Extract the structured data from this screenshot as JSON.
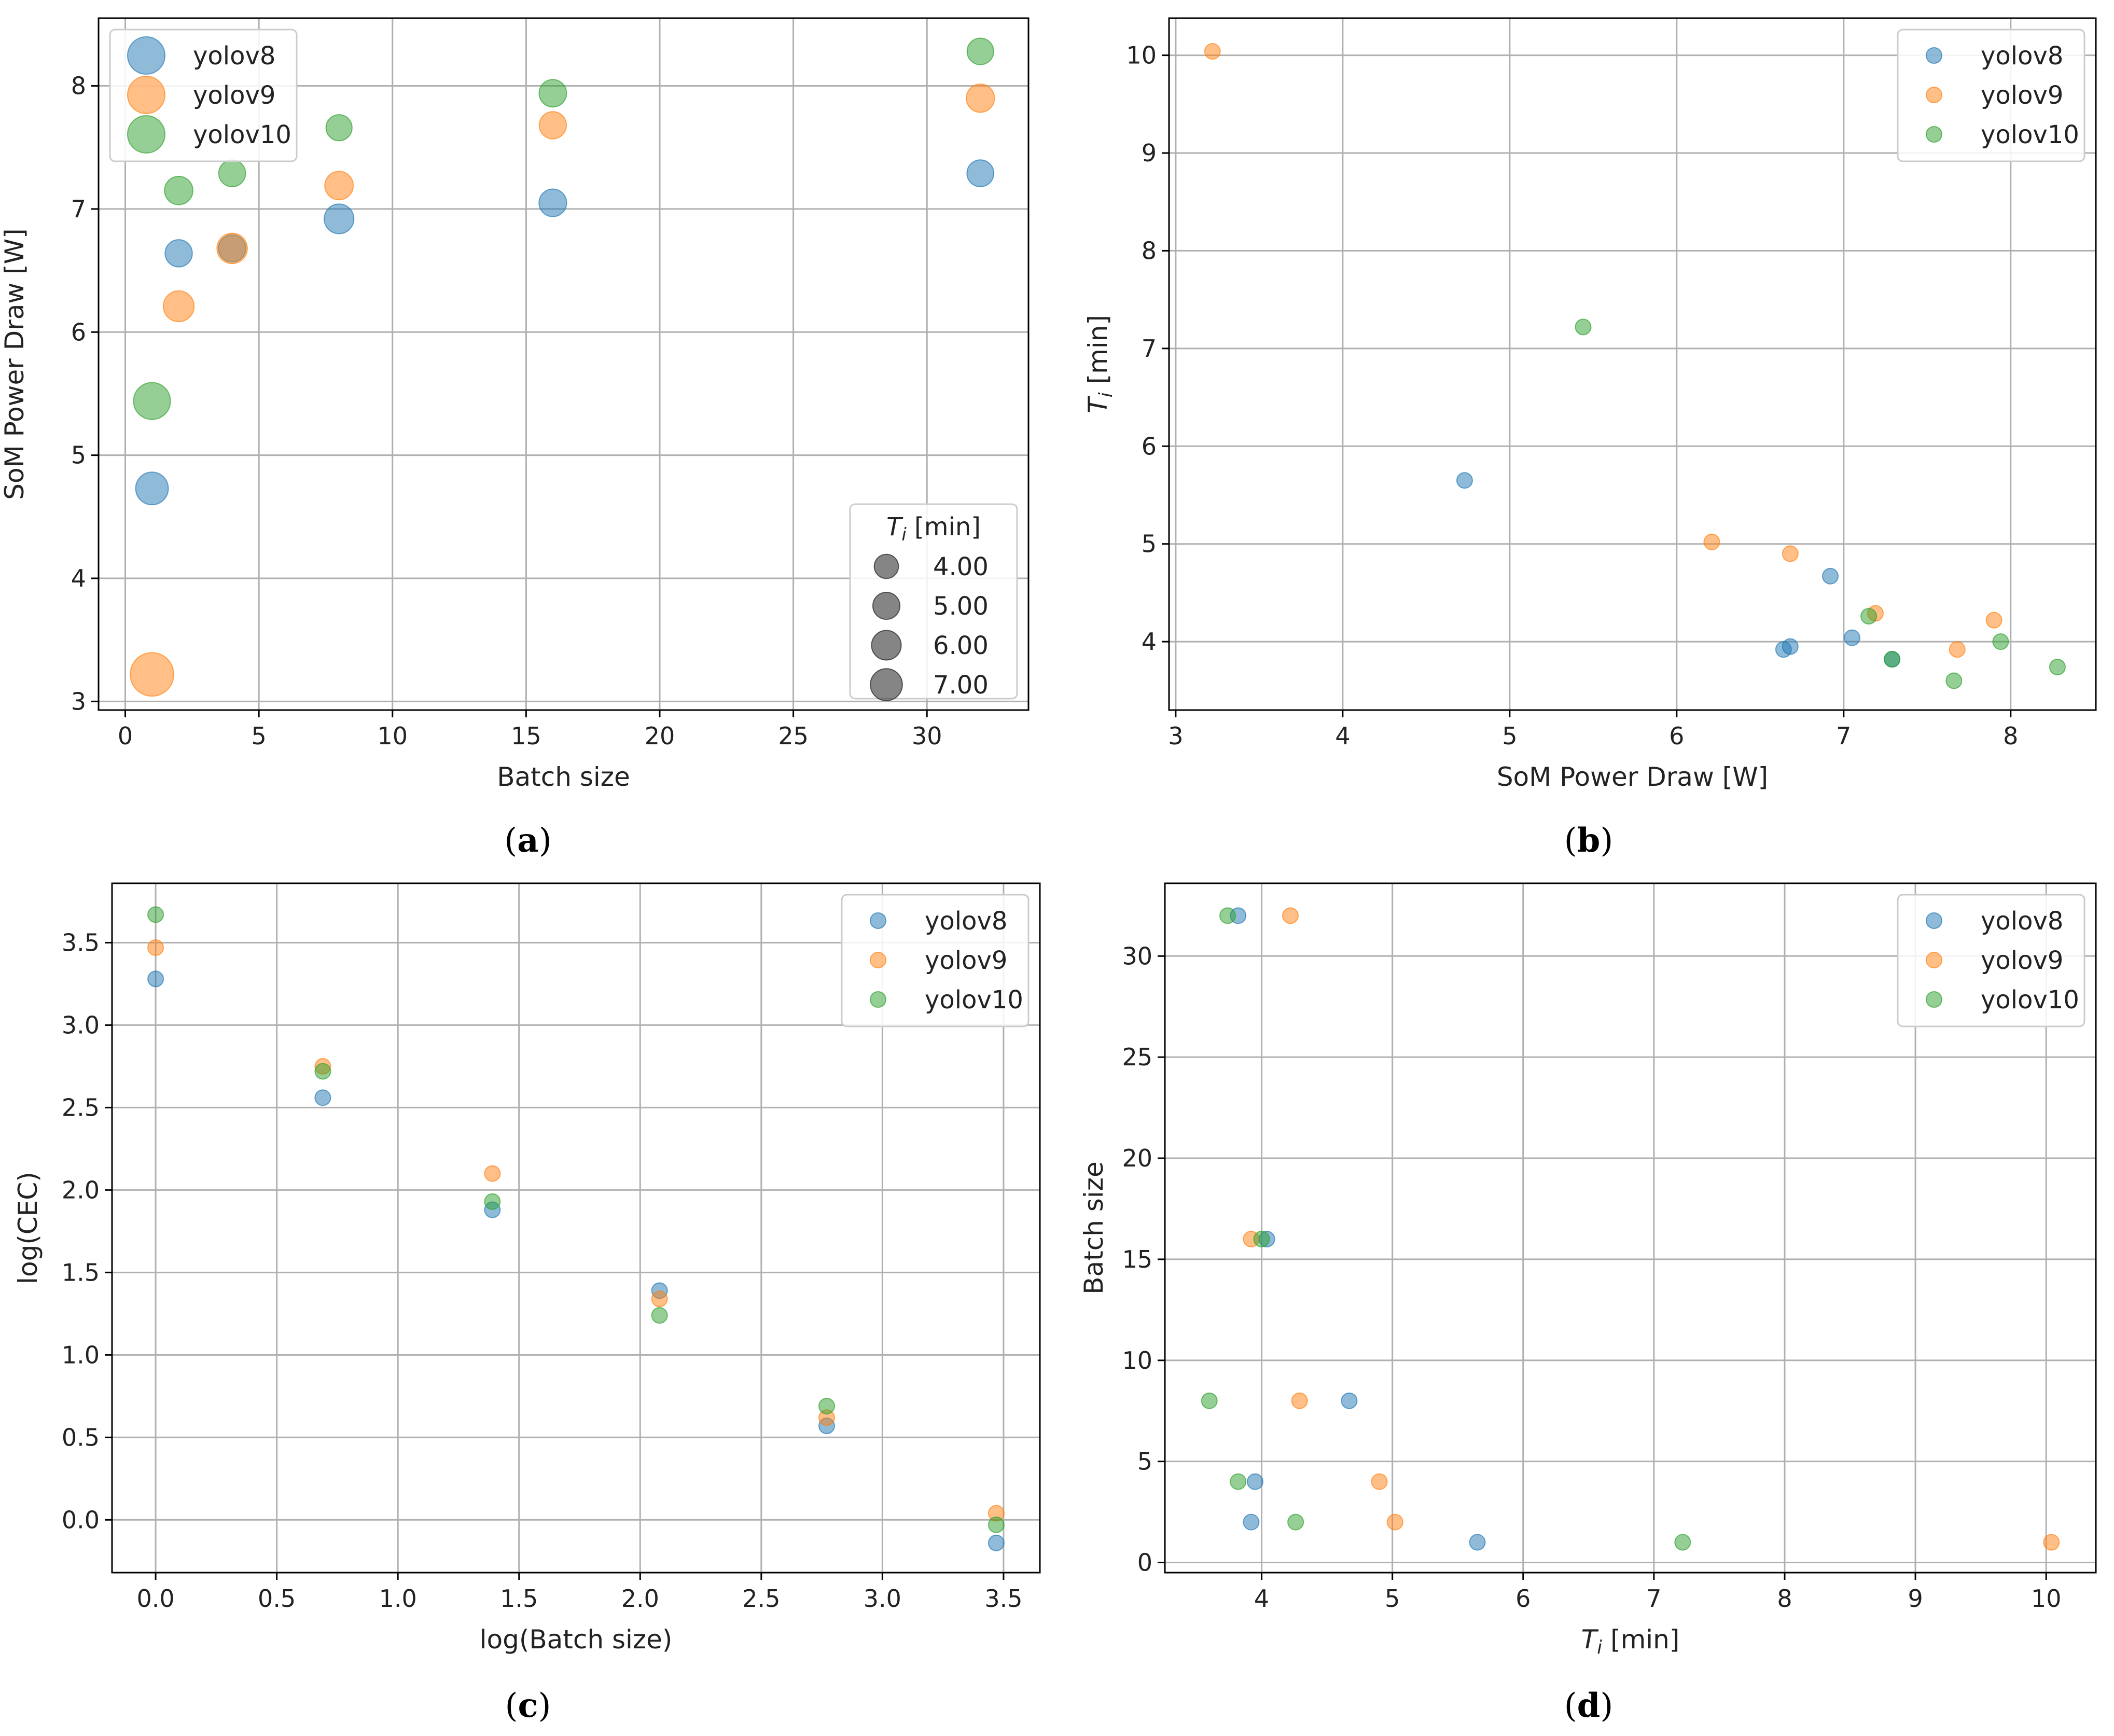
{
  "colors": {
    "yolov8": "#1f77b4",
    "yolov9": "#ff7f0e",
    "yolov10": "#2ca02c",
    "size_marker": "#333333"
  },
  "chart_data": [
    {
      "id": "a",
      "type": "scatter",
      "caption": "a",
      "xlabel": "Batch size",
      "ylabel": "SoM Power Draw [W]",
      "xlim": [
        -1,
        33.8
      ],
      "ylim": [
        2.93,
        8.55
      ],
      "xticks": [
        0,
        5,
        10,
        15,
        20,
        25,
        30
      ],
      "xtick_labels": [
        "0",
        "5",
        "10",
        "15",
        "20",
        "25",
        "30"
      ],
      "yticks": [
        3,
        4,
        5,
        6,
        7,
        8
      ],
      "ytick_labels": [
        "3",
        "4",
        "5",
        "6",
        "7",
        "8"
      ],
      "grid": true,
      "legend_position": "top-left",
      "marker_size_encodes": "T_i [min]",
      "size_legend": {
        "title_main": "T",
        "title_sub": "i",
        "title_rest": " [min]",
        "position": "bottom-right",
        "entries": [
          {
            "value": 4.0,
            "label": "4.00"
          },
          {
            "value": 5.0,
            "label": "5.00"
          },
          {
            "value": 6.0,
            "label": "6.00"
          },
          {
            "value": 7.0,
            "label": "7.00"
          }
        ]
      },
      "series": [
        {
          "name": "yolov8",
          "points": [
            {
              "x": 1,
              "y": 4.73,
              "t": 5.65
            },
            {
              "x": 2,
              "y": 6.64,
              "t": 3.92
            },
            {
              "x": 4,
              "y": 6.68,
              "t": 3.95
            },
            {
              "x": 8,
              "y": 6.92,
              "t": 4.67
            },
            {
              "x": 16,
              "y": 7.05,
              "t": 4.04
            },
            {
              "x": 32,
              "y": 7.29,
              "t": 3.82
            }
          ]
        },
        {
          "name": "yolov9",
          "points": [
            {
              "x": 1,
              "y": 3.22,
              "t": 10.04
            },
            {
              "x": 2,
              "y": 6.21,
              "t": 5.02
            },
            {
              "x": 4,
              "y": 6.68,
              "t": 4.9
            },
            {
              "x": 8,
              "y": 7.19,
              "t": 4.29
            },
            {
              "x": 16,
              "y": 7.68,
              "t": 3.92
            },
            {
              "x": 32,
              "y": 7.9,
              "t": 4.22
            }
          ]
        },
        {
          "name": "yolov10",
          "points": [
            {
              "x": 1,
              "y": 5.44,
              "t": 7.22
            },
            {
              "x": 2,
              "y": 7.15,
              "t": 4.26
            },
            {
              "x": 4,
              "y": 7.29,
              "t": 3.82
            },
            {
              "x": 8,
              "y": 7.66,
              "t": 3.6
            },
            {
              "x": 16,
              "y": 7.94,
              "t": 4.0
            },
            {
              "x": 32,
              "y": 8.28,
              "t": 3.74
            }
          ]
        }
      ]
    },
    {
      "id": "b",
      "type": "scatter",
      "caption": "b",
      "xlabel": "SoM Power Draw [W]",
      "ylabel_main": "T",
      "ylabel_sub": "i",
      "ylabel_rest": " [min]",
      "xlim": [
        2.96,
        8.51
      ],
      "ylim": [
        3.3,
        10.38
      ],
      "xticks": [
        3,
        4,
        5,
        6,
        7,
        8
      ],
      "xtick_labels": [
        "3",
        "4",
        "5",
        "6",
        "7",
        "8"
      ],
      "yticks": [
        4,
        5,
        6,
        7,
        8,
        9,
        10
      ],
      "ytick_labels": [
        "4",
        "5",
        "6",
        "7",
        "8",
        "9",
        "10"
      ],
      "grid": true,
      "legend_position": "top-right",
      "series": [
        {
          "name": "yolov8",
          "points": [
            {
              "x": 4.73,
              "y": 5.65
            },
            {
              "x": 6.64,
              "y": 3.92
            },
            {
              "x": 6.68,
              "y": 3.95
            },
            {
              "x": 6.92,
              "y": 4.67
            },
            {
              "x": 7.05,
              "y": 4.04
            },
            {
              "x": 7.29,
              "y": 3.82
            }
          ]
        },
        {
          "name": "yolov9",
          "points": [
            {
              "x": 3.22,
              "y": 10.04
            },
            {
              "x": 6.21,
              "y": 5.02
            },
            {
              "x": 6.68,
              "y": 4.9
            },
            {
              "x": 7.19,
              "y": 4.29
            },
            {
              "x": 7.68,
              "y": 3.92
            },
            {
              "x": 7.9,
              "y": 4.22
            }
          ]
        },
        {
          "name": "yolov10",
          "points": [
            {
              "x": 5.44,
              "y": 7.22
            },
            {
              "x": 7.15,
              "y": 4.26
            },
            {
              "x": 7.29,
              "y": 3.82
            },
            {
              "x": 7.66,
              "y": 3.6
            },
            {
              "x": 7.94,
              "y": 4.0
            },
            {
              "x": 8.28,
              "y": 3.74
            }
          ]
        }
      ]
    },
    {
      "id": "c",
      "type": "scatter",
      "caption": "c",
      "xlabel": "log(Batch size)",
      "ylabel": "log(CEC)",
      "xlim": [
        -0.18,
        3.65
      ],
      "ylim": [
        -0.32,
        3.86
      ],
      "xticks": [
        0.0,
        0.5,
        1.0,
        1.5,
        2.0,
        2.5,
        3.0,
        3.5
      ],
      "xtick_labels": [
        "0.0",
        "0.5",
        "1.0",
        "1.5",
        "2.0",
        "2.5",
        "3.0",
        "3.5"
      ],
      "yticks": [
        0.0,
        0.5,
        1.0,
        1.5,
        2.0,
        2.5,
        3.0,
        3.5
      ],
      "ytick_labels": [
        "0.0",
        "0.5",
        "1.0",
        "1.5",
        "2.0",
        "2.5",
        "3.0",
        "3.5"
      ],
      "grid": true,
      "legend_position": "top-right",
      "series": [
        {
          "name": "yolov8",
          "points": [
            {
              "x": 0.0,
              "y": 3.28
            },
            {
              "x": 0.69,
              "y": 2.56
            },
            {
              "x": 1.39,
              "y": 1.88
            },
            {
              "x": 2.08,
              "y": 1.39
            },
            {
              "x": 2.77,
              "y": 0.57
            },
            {
              "x": 3.47,
              "y": -0.14
            }
          ]
        },
        {
          "name": "yolov9",
          "points": [
            {
              "x": 0.0,
              "y": 3.47
            },
            {
              "x": 0.69,
              "y": 2.75
            },
            {
              "x": 1.39,
              "y": 2.1
            },
            {
              "x": 2.08,
              "y": 1.34
            },
            {
              "x": 2.77,
              "y": 0.62
            },
            {
              "x": 3.47,
              "y": 0.04
            }
          ]
        },
        {
          "name": "yolov10",
          "points": [
            {
              "x": 0.0,
              "y": 3.67
            },
            {
              "x": 0.69,
              "y": 2.72
            },
            {
              "x": 1.39,
              "y": 1.93
            },
            {
              "x": 2.08,
              "y": 1.24
            },
            {
              "x": 2.77,
              "y": 0.69
            },
            {
              "x": 3.47,
              "y": -0.03
            }
          ]
        }
      ]
    },
    {
      "id": "d",
      "type": "scatter",
      "caption": "d",
      "xlabel_main": "T",
      "xlabel_sub": "i",
      "xlabel_rest": " [min]",
      "ylabel": "Batch size",
      "xlim": [
        3.26,
        10.38
      ],
      "ylim": [
        -0.5,
        33.6
      ],
      "xticks": [
        4,
        5,
        6,
        7,
        8,
        9,
        10
      ],
      "xtick_labels": [
        "4",
        "5",
        "6",
        "7",
        "8",
        "9",
        "10"
      ],
      "yticks": [
        0,
        5,
        10,
        15,
        20,
        25,
        30
      ],
      "ytick_labels": [
        "0",
        "5",
        "10",
        "15",
        "20",
        "25",
        "30"
      ],
      "grid": true,
      "legend_position": "top-right",
      "series": [
        {
          "name": "yolov8",
          "points": [
            {
              "x": 5.65,
              "y": 1
            },
            {
              "x": 3.92,
              "y": 2
            },
            {
              "x": 3.95,
              "y": 4
            },
            {
              "x": 4.67,
              "y": 8
            },
            {
              "x": 4.04,
              "y": 16
            },
            {
              "x": 3.82,
              "y": 32
            }
          ]
        },
        {
          "name": "yolov9",
          "points": [
            {
              "x": 10.04,
              "y": 1
            },
            {
              "x": 5.02,
              "y": 2
            },
            {
              "x": 4.9,
              "y": 4
            },
            {
              "x": 4.29,
              "y": 8
            },
            {
              "x": 3.92,
              "y": 16
            },
            {
              "x": 4.22,
              "y": 32
            }
          ]
        },
        {
          "name": "yolov10",
          "points": [
            {
              "x": 7.22,
              "y": 1
            },
            {
              "x": 4.26,
              "y": 2
            },
            {
              "x": 3.82,
              "y": 4
            },
            {
              "x": 3.6,
              "y": 8
            },
            {
              "x": 4.0,
              "y": 16
            },
            {
              "x": 3.74,
              "y": 32
            }
          ]
        }
      ]
    }
  ]
}
